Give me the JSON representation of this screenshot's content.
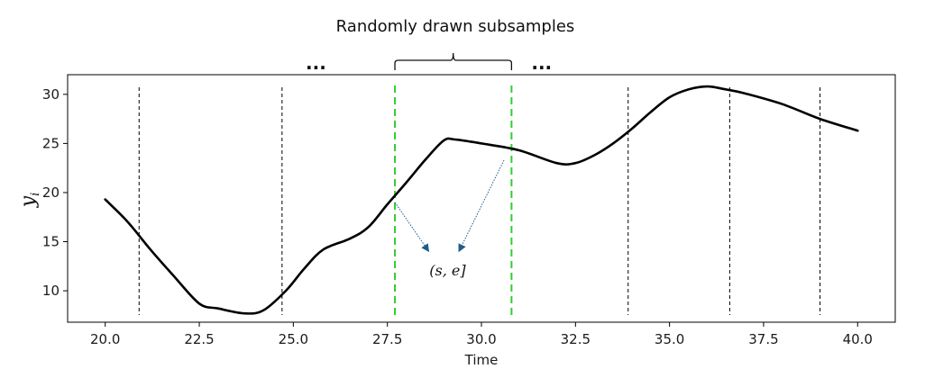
{
  "chart_data": {
    "type": "line",
    "title": "Randomly drawn subsamples",
    "xlabel": "Time",
    "ylabel": "y",
    "ylabel_subscript": "i",
    "xlim": [
      19.0,
      41.0
    ],
    "ylim": [
      6.8,
      32.0
    ],
    "xticks": [
      20.0,
      22.5,
      25.0,
      27.5,
      30.0,
      32.5,
      35.0,
      37.5,
      40.0
    ],
    "xtick_labels": [
      "20.0",
      "22.5",
      "25.0",
      "27.5",
      "30.0",
      "32.5",
      "35.0",
      "37.5",
      "40.0"
    ],
    "yticks": [
      10,
      15,
      20,
      25,
      30
    ],
    "ytick_labels": [
      "10",
      "15",
      "20",
      "25",
      "30"
    ],
    "grid": false,
    "series": [
      {
        "color": "#000000",
        "x": [
          20.0,
          20.6,
          21.2,
          21.8,
          22.5,
          23.0,
          23.7,
          24.2,
          24.8,
          25.3,
          25.8,
          26.5,
          27.0,
          27.5,
          28.0,
          28.5,
          29.0,
          29.3,
          30.0,
          31.0,
          32.0,
          32.5,
          33.0,
          33.5,
          34.0,
          34.5,
          35.0,
          35.5,
          36.0,
          36.5,
          37.0,
          38.0,
          39.0,
          40.0
        ],
        "y": [
          19.3,
          17.0,
          14.2,
          11.6,
          8.7,
          8.2,
          7.7,
          8.0,
          10.0,
          12.3,
          14.2,
          15.3,
          16.5,
          18.8,
          21.0,
          23.3,
          25.3,
          25.4,
          25.0,
          24.3,
          23.0,
          23.0,
          23.8,
          25.0,
          26.5,
          28.2,
          29.7,
          30.5,
          30.8,
          30.5,
          30.1,
          29.0,
          27.5,
          26.3
        ]
      }
    ],
    "vlines_black": [
      20.9,
      24.7,
      33.9,
      36.6,
      39.0
    ],
    "vlines_green": [
      27.7,
      30.8
    ],
    "green_color": "#33cc33",
    "arrow_color": "#1f5c8a",
    "annotation_label": "(s, e]",
    "brace_span": [
      27.7,
      30.8
    ],
    "ellipsis_left": "...",
    "ellipsis_right": "..."
  }
}
